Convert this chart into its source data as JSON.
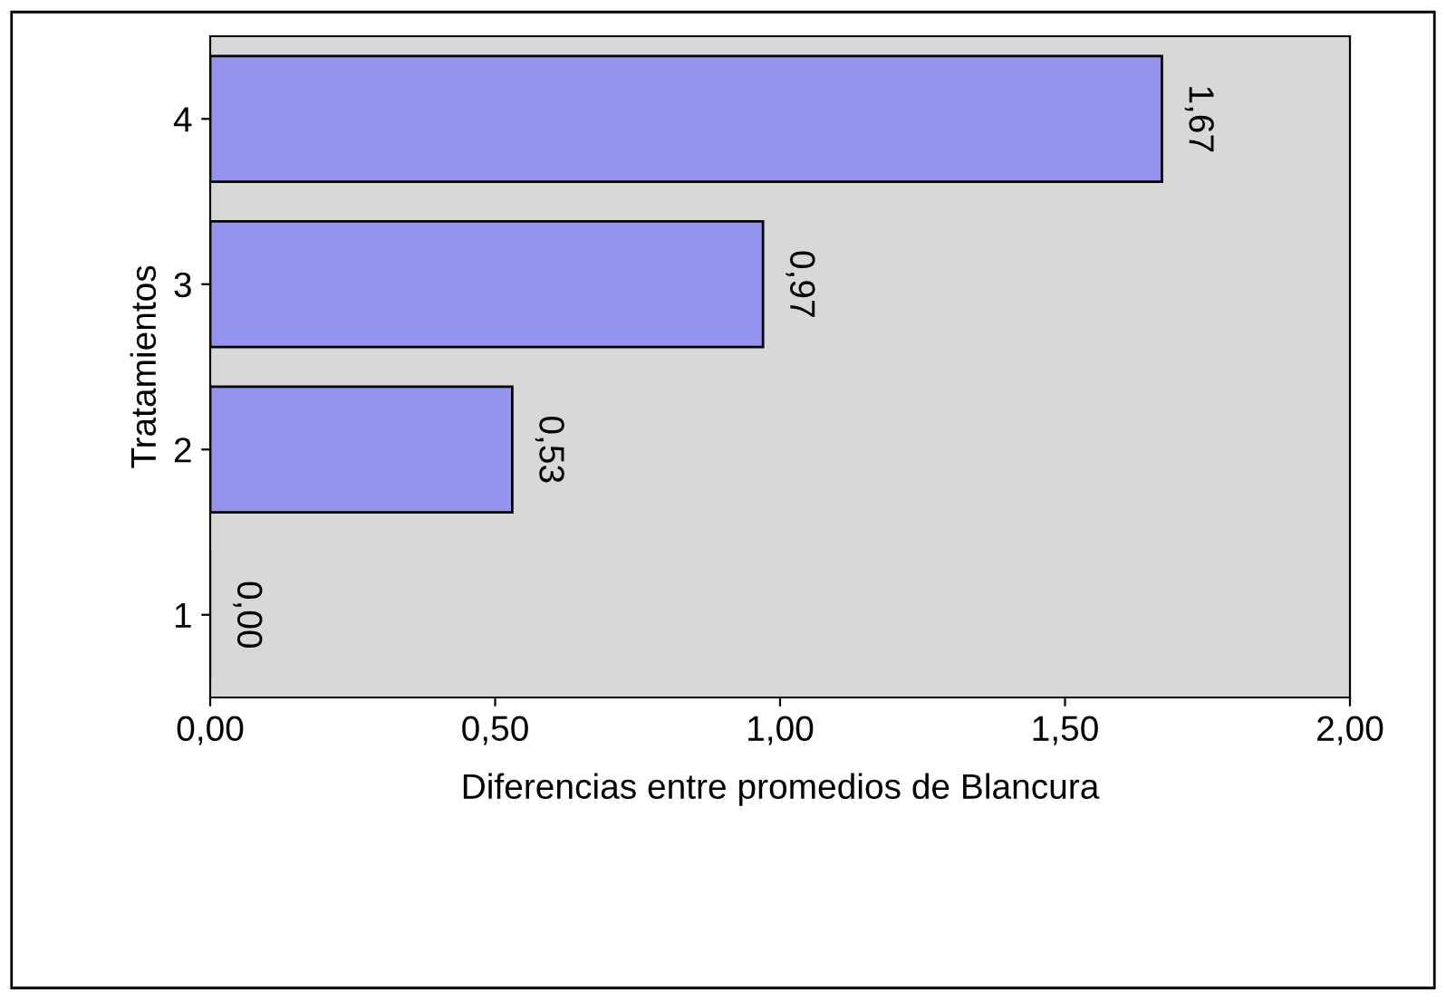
{
  "chart_data": {
    "type": "bar",
    "orientation": "horizontal",
    "xlabel": "Diferencias entre promedios de Blancura",
    "ylabel": "Tratamientos",
    "categories": [
      "4",
      "3",
      "2",
      "1"
    ],
    "values": [
      1.67,
      0.97,
      0.53,
      0.0
    ],
    "value_labels": [
      "1,67",
      "0,97",
      "0,53",
      "0,00"
    ],
    "color": "#9494f0",
    "xlim": [
      0,
      2
    ],
    "xticks": [
      {
        "value": 0,
        "label": "0,00"
      },
      {
        "value": 0.5,
        "label": "0,50"
      },
      {
        "value": 1,
        "label": "1,00"
      },
      {
        "value": 1.5,
        "label": "1,50"
      },
      {
        "value": 2,
        "label": "2,00"
      }
    ],
    "grid": false
  }
}
